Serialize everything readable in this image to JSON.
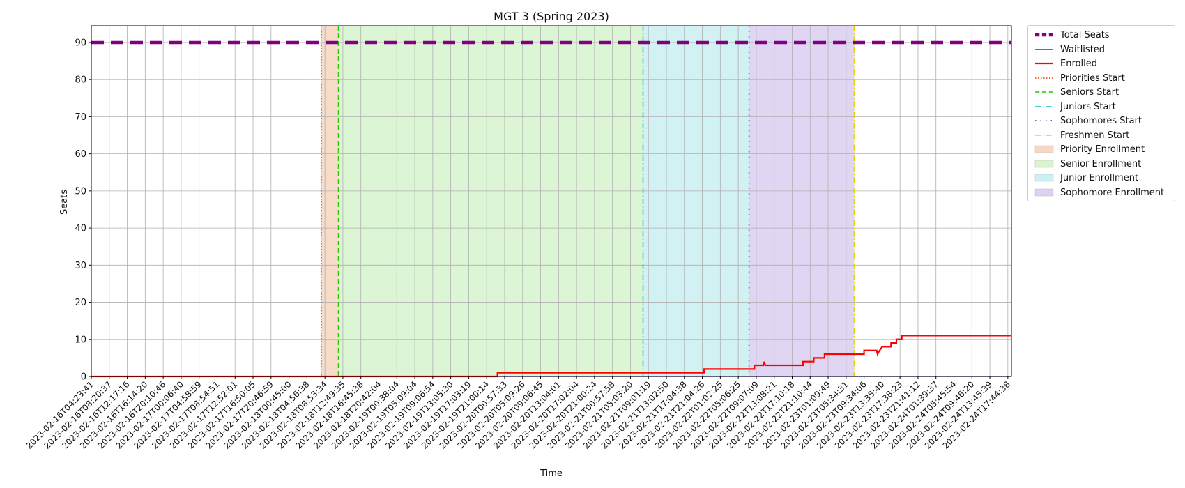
{
  "chart_data": {
    "type": "line",
    "title": "MGT 3 (Spring 2023)",
    "xlabel": "Time",
    "ylabel": "Seats",
    "ylim": [
      0,
      94.5
    ],
    "grid": true,
    "legend_placement": "outside-upper-right",
    "x_range_index": [
      0,
      51.2
    ],
    "x_tick_labels": [
      "2023-02-16T04:23:41",
      "2023-02-16T08:20:37",
      "2023-02-16T12:17:16",
      "2023-02-16T16:14:20",
      "2023-02-16T20:10:46",
      "2023-02-17T00:06:40",
      "2023-02-17T04:58:59",
      "2023-02-17T08:54:51",
      "2023-02-17T12:52:01",
      "2023-02-17T16:50:05",
      "2023-02-17T20:46:59",
      "2023-02-18T00:45:00",
      "2023-02-18T04:56:38",
      "2023-02-18T08:53:34",
      "2023-02-18T12:49:35",
      "2023-02-18T16:45:38",
      "2023-02-18T20:42:04",
      "2023-02-19T00:38:04",
      "2023-02-19T05:09:04",
      "2023-02-19T09:06:54",
      "2023-02-19T13:05:30",
      "2023-02-19T17:03:19",
      "2023-02-19T21:00:14",
      "2023-02-20T00:57:33",
      "2023-02-20T05:09:26",
      "2023-02-20T09:06:45",
      "2023-02-20T13:04:01",
      "2023-02-20T17:02:04",
      "2023-02-20T21:00:24",
      "2023-02-21T00:57:58",
      "2023-02-21T05:03:20",
      "2023-02-21T09:01:19",
      "2023-02-21T13:02:50",
      "2023-02-21T17:04:38",
      "2023-02-21T21:04:26",
      "2023-02-22T01:02:25",
      "2023-02-22T05:06:25",
      "2023-02-22T09:07:09",
      "2023-02-22T13:08:21",
      "2023-02-22T17:10:18",
      "2023-02-22T21:10:44",
      "2023-02-23T01:09:49",
      "2023-02-23T05:34:31",
      "2023-02-23T09:34:06",
      "2023-02-23T13:35:40",
      "2023-02-23T17:38:23",
      "2023-02-23T21:41:12",
      "2023-02-24T01:39:37",
      "2023-02-24T05:45:54",
      "2023-02-24T09:46:20",
      "2023-02-24T13:45:39",
      "2023-02-24T17:44:38"
    ],
    "y_ticks": [
      0,
      10,
      20,
      30,
      40,
      50,
      60,
      70,
      80,
      90
    ],
    "series": [
      {
        "name": "Total Seats",
        "color": "#800080",
        "style": "dashed",
        "points": [
          [
            0,
            90
          ],
          [
            51.2,
            90
          ]
        ]
      },
      {
        "name": "Waitlisted",
        "color": "#0000ff",
        "style": "solid",
        "points": [
          [
            0,
            0
          ],
          [
            51.2,
            0
          ]
        ]
      },
      {
        "name": "Enrolled",
        "color": "#ff0000",
        "style": "solid",
        "points": [
          [
            0,
            0
          ],
          [
            22.6,
            0
          ],
          [
            22.6,
            1
          ],
          [
            34.1,
            1
          ],
          [
            34.1,
            2
          ],
          [
            36.9,
            2
          ],
          [
            36.9,
            3
          ],
          [
            37.4,
            3
          ],
          [
            37.45,
            4
          ],
          [
            37.5,
            3
          ],
          [
            39.6,
            3
          ],
          [
            39.6,
            4
          ],
          [
            40.2,
            4
          ],
          [
            40.2,
            5
          ],
          [
            40.8,
            5
          ],
          [
            40.8,
            6
          ],
          [
            43.0,
            6
          ],
          [
            43.0,
            7
          ],
          [
            43.7,
            7
          ],
          [
            43.75,
            6
          ],
          [
            43.8,
            6.5
          ],
          [
            44.0,
            8
          ],
          [
            44.5,
            8
          ],
          [
            44.5,
            9
          ],
          [
            44.8,
            9
          ],
          [
            44.8,
            10
          ],
          [
            45.1,
            10
          ],
          [
            45.1,
            11
          ],
          [
            51.2,
            11
          ]
        ]
      }
    ],
    "vertical_lines": [
      {
        "name": "Priorities Start",
        "x": 12.8,
        "color": "#ff3300",
        "style": "dotted"
      },
      {
        "name": "Seniors Start",
        "x": 13.75,
        "color": "#22cc00",
        "style": "dashed"
      },
      {
        "name": "Juniors Start",
        "x": 30.7,
        "color": "#00bfbf",
        "style": "dashdot"
      },
      {
        "name": "Sophomores Start",
        "x": 36.6,
        "color": "#5500dd",
        "style": "dot-sparse"
      },
      {
        "name": "Freshmen Start",
        "x": 42.45,
        "color": "#e6d200",
        "style": "dashdot"
      }
    ],
    "spans": [
      {
        "name": "Priority Enrollment",
        "x0": 12.8,
        "x1": 13.75,
        "color": "#f7d8c4"
      },
      {
        "name": "Senior Enrollment",
        "x0": 13.75,
        "x1": 30.7,
        "color": "#d8f4d0"
      },
      {
        "name": "Junior Enrollment",
        "x0": 30.7,
        "x1": 36.6,
        "color": "#cdf0f2"
      },
      {
        "name": "Sophomore Enrollment",
        "x0": 36.6,
        "x1": 42.45,
        "color": "#ddd2f3"
      }
    ],
    "legend": [
      "Total Seats",
      "Waitlisted",
      "Enrolled",
      "Priorities Start",
      "Seniors Start",
      "Juniors Start",
      "Sophomores Start",
      "Freshmen Start",
      "Priority Enrollment",
      "Senior Enrollment",
      "Junior Enrollment",
      "Sophomore Enrollment"
    ]
  }
}
